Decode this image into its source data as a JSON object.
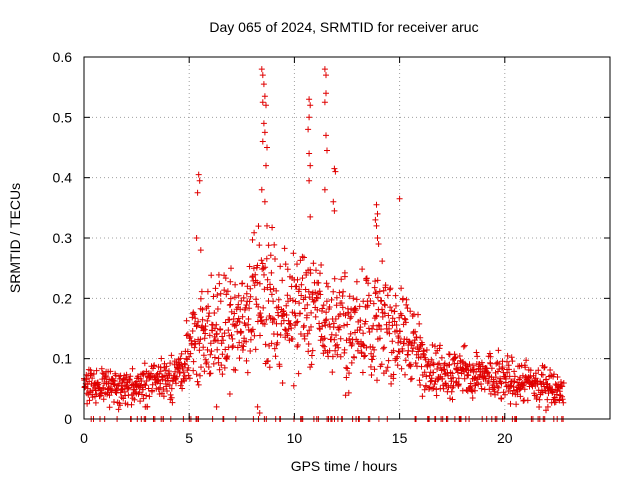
{
  "chart_data": {
    "type": "scatter",
    "title": "Day 065 of 2024, SRMTID for receiver aruc",
    "xlabel": "GPS time / hours",
    "ylabel": "SRMTID / TECUs",
    "xlim": [
      0,
      25
    ],
    "ylim": [
      0,
      0.6
    ],
    "xticks": [
      0,
      5,
      10,
      15,
      20
    ],
    "xtick_labels": [
      "0",
      "5",
      "10",
      "15",
      "20"
    ],
    "yticks": [
      0,
      0.1,
      0.2,
      0.3,
      0.4,
      0.5,
      0.6
    ],
    "ytick_labels": [
      "0",
      "0.1",
      "0.2",
      "0.3",
      "0.4",
      "0.5",
      "0.6"
    ],
    "grid": true,
    "marker": "+",
    "color": "#e00000",
    "x_extent_hours": [
      0,
      22.8
    ],
    "profile": {
      "x_hours": [
        0,
        1,
        2,
        3,
        4,
        4.7,
        5,
        5.5,
        6,
        6.5,
        7,
        7.5,
        8,
        8.5,
        9,
        9.5,
        10,
        10.5,
        11,
        11.5,
        12,
        12.5,
        13,
        13.5,
        14,
        14.5,
        15,
        15.5,
        16,
        16.5,
        17,
        18,
        19,
        20,
        21,
        22,
        22.8
      ],
      "median_tecu": [
        0.05,
        0.055,
        0.05,
        0.06,
        0.07,
        0.08,
        0.12,
        0.14,
        0.15,
        0.15,
        0.16,
        0.17,
        0.19,
        0.2,
        0.2,
        0.19,
        0.18,
        0.18,
        0.19,
        0.17,
        0.15,
        0.15,
        0.16,
        0.16,
        0.16,
        0.15,
        0.14,
        0.14,
        0.1,
        0.085,
        0.08,
        0.075,
        0.07,
        0.065,
        0.06,
        0.055,
        0.05
      ]
    },
    "outliers": [
      {
        "x": 5.45,
        "y": 0.405
      },
      {
        "x": 5.5,
        "y": 0.395
      },
      {
        "x": 5.4,
        "y": 0.375
      },
      {
        "x": 5.35,
        "y": 0.3
      },
      {
        "x": 5.55,
        "y": 0.28
      },
      {
        "x": 8.45,
        "y": 0.58
      },
      {
        "x": 8.5,
        "y": 0.57
      },
      {
        "x": 8.55,
        "y": 0.555
      },
      {
        "x": 8.6,
        "y": 0.535
      },
      {
        "x": 8.5,
        "y": 0.525
      },
      {
        "x": 8.65,
        "y": 0.52
      },
      {
        "x": 8.55,
        "y": 0.49
      },
      {
        "x": 8.6,
        "y": 0.475
      },
      {
        "x": 8.5,
        "y": 0.46
      },
      {
        "x": 8.7,
        "y": 0.45
      },
      {
        "x": 8.65,
        "y": 0.42
      },
      {
        "x": 8.45,
        "y": 0.38
      },
      {
        "x": 8.6,
        "y": 0.36
      },
      {
        "x": 8.7,
        "y": 0.32
      },
      {
        "x": 10.7,
        "y": 0.53
      },
      {
        "x": 10.75,
        "y": 0.52
      },
      {
        "x": 10.7,
        "y": 0.5
      },
      {
        "x": 10.65,
        "y": 0.48
      },
      {
        "x": 10.7,
        "y": 0.44
      },
      {
        "x": 10.75,
        "y": 0.42
      },
      {
        "x": 10.7,
        "y": 0.395
      },
      {
        "x": 10.75,
        "y": 0.335
      },
      {
        "x": 11.45,
        "y": 0.58
      },
      {
        "x": 11.5,
        "y": 0.57
      },
      {
        "x": 11.5,
        "y": 0.54
      },
      {
        "x": 11.45,
        "y": 0.525
      },
      {
        "x": 11.5,
        "y": 0.47
      },
      {
        "x": 11.55,
        "y": 0.445
      },
      {
        "x": 11.45,
        "y": 0.38
      },
      {
        "x": 11.9,
        "y": 0.415
      },
      {
        "x": 11.95,
        "y": 0.41
      },
      {
        "x": 11.85,
        "y": 0.36
      },
      {
        "x": 11.9,
        "y": 0.345
      },
      {
        "x": 13.9,
        "y": 0.355
      },
      {
        "x": 13.95,
        "y": 0.34
      },
      {
        "x": 13.85,
        "y": 0.33
      },
      {
        "x": 13.9,
        "y": 0.32
      },
      {
        "x": 13.95,
        "y": 0.3
      },
      {
        "x": 14.0,
        "y": 0.29
      },
      {
        "x": 15.0,
        "y": 0.365
      },
      {
        "x": 8.25,
        "y": 0.02
      },
      {
        "x": 8.35,
        "y": 0.01
      },
      {
        "x": 6.3,
        "y": 0.02
      }
    ]
  },
  "style": {
    "background": "#ffffff",
    "point_color": "#e00000",
    "grid_color": "#a0a0a0",
    "frame_color": "#000000"
  }
}
